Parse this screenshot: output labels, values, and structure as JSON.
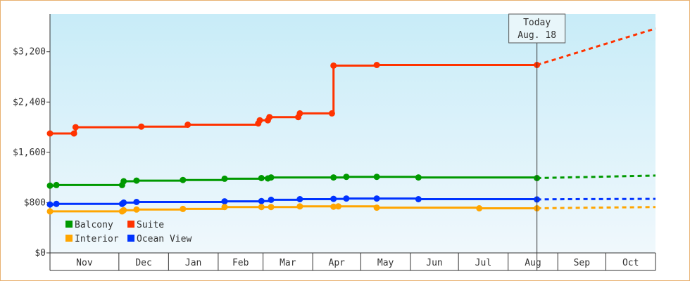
{
  "chart_data": {
    "type": "line",
    "step": true,
    "title": "",
    "xlabel": "",
    "ylabel": "",
    "ylim": [
      0,
      3800
    ],
    "y_ticks": [
      0,
      800,
      1600,
      2400,
      3200
    ],
    "y_tick_labels": [
      "$0",
      "$800",
      "$1,600",
      "$2,400",
      "$3,200"
    ],
    "x_range": [
      "2020-10-18",
      "2021-10-31"
    ],
    "months": [
      {
        "label": "Nov",
        "start": "2020-10-18",
        "end": "2020-11-30"
      },
      {
        "label": "Dec",
        "start": "2020-11-30",
        "end": "2020-12-31"
      },
      {
        "label": "Jan",
        "start": "2020-12-31",
        "end": "2021-01-31"
      },
      {
        "label": "Feb",
        "start": "2021-01-31",
        "end": "2021-02-28"
      },
      {
        "label": "Mar",
        "start": "2021-02-28",
        "end": "2021-03-31"
      },
      {
        "label": "Apr",
        "start": "2021-03-31",
        "end": "2021-04-30"
      },
      {
        "label": "May",
        "start": "2021-04-30",
        "end": "2021-05-31"
      },
      {
        "label": "Jun",
        "start": "2021-05-31",
        "end": "2021-06-30"
      },
      {
        "label": "Jul",
        "start": "2021-06-30",
        "end": "2021-07-31"
      },
      {
        "label": "Aug",
        "start": "2021-07-31",
        "end": "2021-08-31"
      },
      {
        "label": "Sep",
        "start": "2021-08-31",
        "end": "2021-09-30"
      },
      {
        "label": "Oct",
        "start": "2021-09-30",
        "end": "2021-10-31"
      }
    ],
    "today": {
      "date": "2021-08-18",
      "line1": "Today",
      "line2": "Aug. 18"
    },
    "legend_position": "bottom-left",
    "grid": false,
    "background_gradient": [
      "#c8ecf8",
      "#f0f8fc"
    ],
    "series": [
      {
        "name": "Suite",
        "color": "#ff3300",
        "points": [
          [
            "2020-10-18",
            1900
          ],
          [
            "2020-11-02",
            1900
          ],
          [
            "2020-11-03",
            2000
          ],
          [
            "2020-12-14",
            2010
          ],
          [
            "2021-01-12",
            2040
          ],
          [
            "2021-02-25",
            2060
          ],
          [
            "2021-02-26",
            2110
          ],
          [
            "2021-03-03",
            2110
          ],
          [
            "2021-03-04",
            2160
          ],
          [
            "2021-03-22",
            2160
          ],
          [
            "2021-03-23",
            2220
          ],
          [
            "2021-04-12",
            2220
          ],
          [
            "2021-04-13",
            2980
          ],
          [
            "2021-05-10",
            2990
          ],
          [
            "2021-08-18",
            2990
          ]
        ],
        "forecast": [
          [
            "2021-08-18",
            2990
          ],
          [
            "2021-10-31",
            3570
          ]
        ]
      },
      {
        "name": "Balcony",
        "color": "#009900",
        "points": [
          [
            "2020-10-18",
            1070
          ],
          [
            "2020-10-22",
            1080
          ],
          [
            "2020-12-02",
            1080
          ],
          [
            "2020-12-03",
            1140
          ],
          [
            "2020-12-11",
            1150
          ],
          [
            "2021-01-09",
            1160
          ],
          [
            "2021-02-04",
            1180
          ],
          [
            "2021-02-27",
            1190
          ],
          [
            "2021-03-03",
            1185
          ],
          [
            "2021-03-05",
            1200
          ],
          [
            "2021-04-13",
            1200
          ],
          [
            "2021-04-21",
            1210
          ],
          [
            "2021-05-10",
            1210
          ],
          [
            "2021-06-05",
            1200
          ],
          [
            "2021-08-18",
            1190
          ]
        ],
        "forecast": [
          [
            "2021-08-18",
            1190
          ],
          [
            "2021-09-05",
            1200
          ],
          [
            "2021-10-31",
            1230
          ]
        ]
      },
      {
        "name": "Ocean View",
        "color": "#0033ff",
        "points": [
          [
            "2020-10-18",
            770
          ],
          [
            "2020-10-22",
            780
          ],
          [
            "2020-12-02",
            780
          ],
          [
            "2020-12-03",
            800
          ],
          [
            "2020-12-11",
            810
          ],
          [
            "2021-02-04",
            820
          ],
          [
            "2021-02-27",
            825
          ],
          [
            "2021-03-05",
            845
          ],
          [
            "2021-03-23",
            855
          ],
          [
            "2021-04-13",
            860
          ],
          [
            "2021-04-21",
            865
          ],
          [
            "2021-05-10",
            865
          ],
          [
            "2021-06-05",
            855
          ],
          [
            "2021-08-18",
            850
          ]
        ],
        "forecast": [
          [
            "2021-08-18",
            850
          ],
          [
            "2021-09-05",
            855
          ],
          [
            "2021-10-31",
            860
          ]
        ]
      },
      {
        "name": "Interior",
        "color": "#ffa500",
        "points": [
          [
            "2020-10-18",
            660
          ],
          [
            "2020-12-02",
            660
          ],
          [
            "2020-12-03",
            680
          ],
          [
            "2020-12-11",
            690
          ],
          [
            "2021-01-09",
            700
          ],
          [
            "2021-02-04",
            730
          ],
          [
            "2021-02-27",
            730
          ],
          [
            "2021-03-05",
            730
          ],
          [
            "2021-03-23",
            740
          ],
          [
            "2021-04-13",
            735
          ],
          [
            "2021-04-16",
            740
          ],
          [
            "2021-05-10",
            720
          ],
          [
            "2021-07-13",
            710
          ],
          [
            "2021-08-18",
            710
          ]
        ],
        "forecast": [
          [
            "2021-08-18",
            710
          ],
          [
            "2021-09-05",
            715
          ],
          [
            "2021-10-31",
            730
          ]
        ]
      }
    ],
    "legend": [
      {
        "name": "Balcony",
        "color": "#009900"
      },
      {
        "name": "Suite",
        "color": "#ff3300"
      },
      {
        "name": "Interior",
        "color": "#ffa500"
      },
      {
        "name": "Ocean View",
        "color": "#0033ff"
      }
    ]
  }
}
